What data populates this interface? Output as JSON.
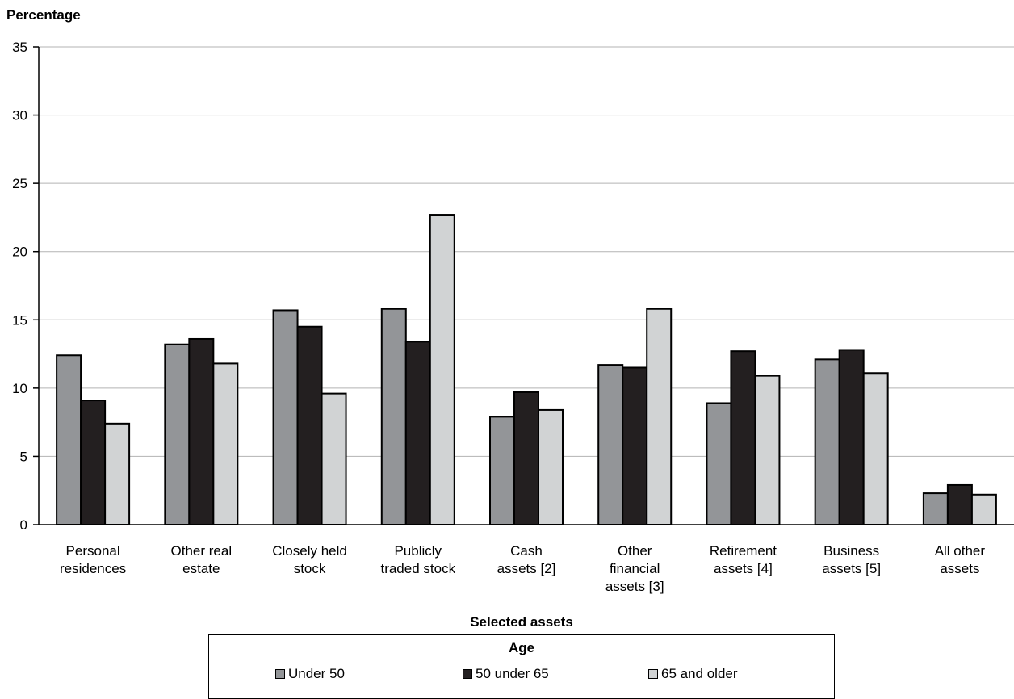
{
  "chart_data": {
    "type": "bar",
    "title": "",
    "ylabel": "Percentage",
    "xlabel": "Selected assets",
    "ylim": [
      0,
      35
    ],
    "yticks": [
      0,
      5,
      10,
      15,
      20,
      25,
      30,
      35
    ],
    "grid": true,
    "legend_title": "Age",
    "legend_position": "bottom",
    "categories": [
      [
        "Personal",
        "residences"
      ],
      [
        "Other real",
        "estate"
      ],
      [
        "Closely held",
        "stock"
      ],
      [
        "Publicly",
        "traded stock"
      ],
      [
        "Cash",
        "assets [2]"
      ],
      [
        "Other",
        "financial",
        "assets [3]"
      ],
      [
        "Retirement",
        "assets [4]"
      ],
      [
        "Business",
        "assets [5]"
      ],
      [
        "All other",
        "assets"
      ]
    ],
    "series": [
      {
        "name": "Under 50",
        "color": "#939598",
        "values": [
          12.4,
          13.2,
          15.7,
          15.8,
          7.9,
          11.7,
          8.9,
          12.1,
          2.3
        ]
      },
      {
        "name": "50 under 65",
        "color": "#231f20",
        "values": [
          9.1,
          13.6,
          14.5,
          13.4,
          9.7,
          11.5,
          12.7,
          12.8,
          2.9
        ]
      },
      {
        "name": "65 and older",
        "color": "#d1d3d4",
        "values": [
          7.4,
          11.8,
          9.6,
          22.7,
          8.4,
          15.8,
          10.9,
          11.1,
          2.2
        ]
      }
    ]
  }
}
